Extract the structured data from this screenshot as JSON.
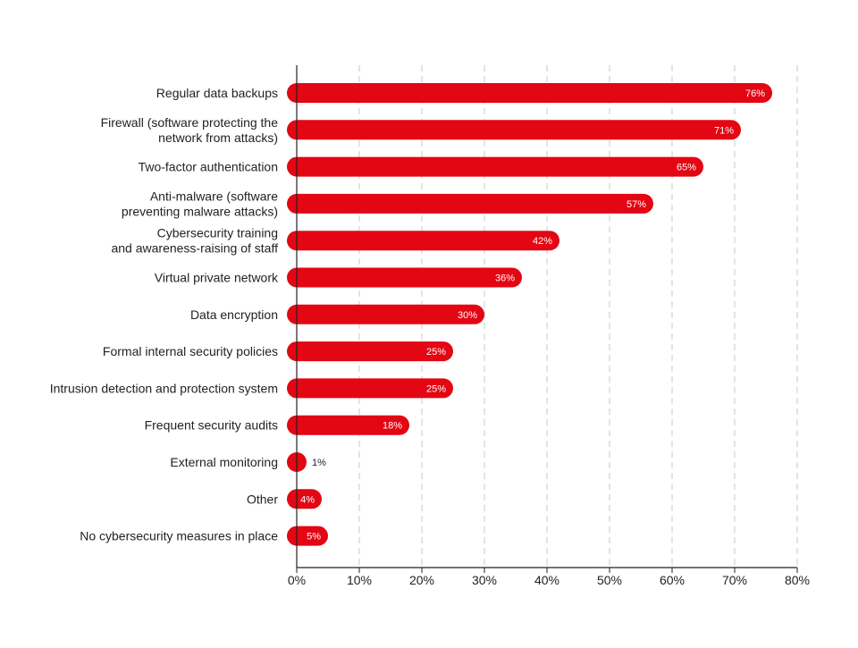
{
  "chart_data": {
    "type": "bar",
    "orientation": "horizontal",
    "title": "",
    "xlabel": "",
    "ylabel": "",
    "xlim": [
      0,
      80
    ],
    "x_ticks": [
      0,
      10,
      20,
      30,
      40,
      50,
      60,
      70,
      80
    ],
    "x_tick_labels": [
      "0%",
      "10%",
      "20%",
      "30%",
      "40%",
      "50%",
      "60%",
      "70%",
      "80%"
    ],
    "grid": "vertical dashed",
    "legend": "none",
    "bar_color": "#e30613",
    "label_color_inside": "#ffffff",
    "label_color_outside": "#222222",
    "categories": [
      [
        "Regular data backups"
      ],
      [
        "Firewall (software protecting the",
        "network from attacks)"
      ],
      [
        "Two-factor authentication"
      ],
      [
        "Anti-malware (software",
        "preventing malware attacks)"
      ],
      [
        "Cybersecurity training",
        "and awareness-raising of staff"
      ],
      [
        "Virtual private network"
      ],
      [
        "Data encryption"
      ],
      [
        "Formal internal security policies"
      ],
      [
        "Intrusion detection and protection system"
      ],
      [
        "Frequent security audits"
      ],
      [
        "External monitoring"
      ],
      [
        "Other"
      ],
      [
        "No cybersecurity measures in place"
      ]
    ],
    "values": [
      76,
      71,
      65,
      57,
      42,
      36,
      30,
      25,
      25,
      18,
      1,
      4,
      5
    ],
    "value_labels": [
      "76%",
      "71%",
      "65%",
      "57%",
      "42%",
      "36%",
      "30%",
      "25%",
      "25%",
      "18%",
      "1%",
      "4%",
      "5%"
    ]
  }
}
